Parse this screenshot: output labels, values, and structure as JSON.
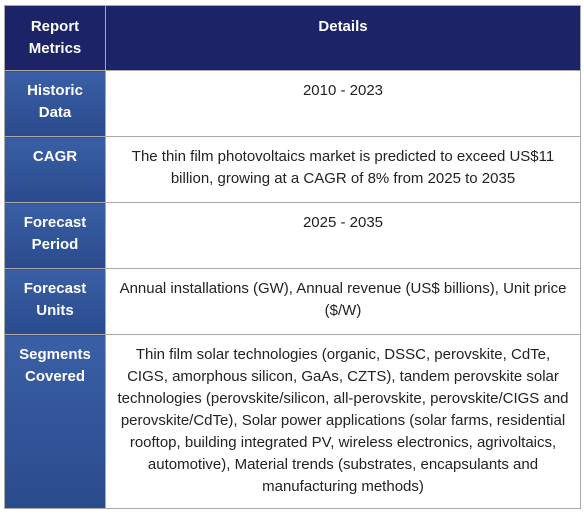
{
  "header": {
    "metric_line1": "Report",
    "metric_line2": "Metrics",
    "details": "Details"
  },
  "rows": [
    {
      "metric_line1": "Historic",
      "metric_line2": "Data",
      "details": "2010 - 2023"
    },
    {
      "metric_line1": "CAGR",
      "metric_line2": "",
      "details": "The thin film photovoltaics market is predicted to exceed US$11 billion, growing at a CAGR of 8% from 2025 to 2035"
    },
    {
      "metric_line1": "Forecast",
      "metric_line2": "Period",
      "details": "2025 - 2035"
    },
    {
      "metric_line1": "Forecast",
      "metric_line2": "Units",
      "details": "Annual installations (GW), Annual revenue (US$ billions), Unit price ($/W)"
    },
    {
      "metric_line1": "Segments",
      "metric_line2": "Covered",
      "details": "Thin film solar technologies (organic, DSSC, perovskite, CdTe, CIGS, amorphous silicon, GaAs, CZTS), tandem perovskite solar technologies (perovskite/silicon, all-perovskite, perovskite/CIGS and perovskite/CdTe), Solar power applications (solar farms, residential rooftop, building integrated PV, wireless electronics, agrivoltaics, automotive), Material trends (substrates, encapsulants and manufacturing methods)"
    }
  ],
  "colors": {
    "header_bg": "#1c2366",
    "metric_bg": "#3a5fa6",
    "border": "#a9a9a9"
  }
}
